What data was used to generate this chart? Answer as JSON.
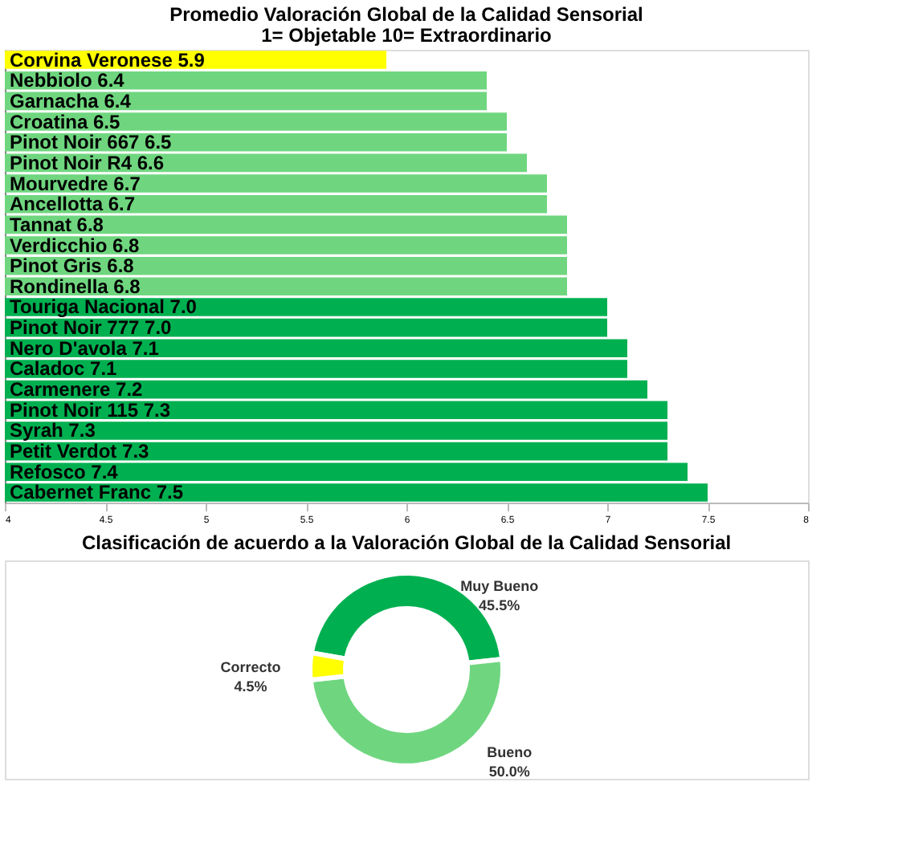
{
  "chart_data": [
    {
      "type": "bar",
      "orientation": "horizontal",
      "title": "Promedio Valoración Global de la Calidad Sensorial",
      "subtitle": "1= Objetable 10= Extraordinario",
      "categories": [
        "Corvina Veronese",
        "Nebbiolo",
        "Garnacha",
        "Croatina",
        "Pinot Noir 667",
        "Pinot Noir R4",
        "Mourvedre",
        "Ancellotta",
        "Tannat",
        "Verdicchio",
        "Pinot Gris",
        "Rondinella",
        "Touriga Nacional",
        "Pinot Noir 777",
        "Nero D'avola",
        "Caladoc",
        "Carmenere",
        "Pinot Noir 115",
        "Syrah",
        "Petit Verdot",
        "Refosco",
        "Cabernet Franc"
      ],
      "values": [
        5.9,
        6.4,
        6.4,
        6.5,
        6.5,
        6.6,
        6.7,
        6.7,
        6.8,
        6.8,
        6.8,
        6.8,
        7.0,
        7.0,
        7.1,
        7.1,
        7.2,
        7.3,
        7.3,
        7.3,
        7.4,
        7.5
      ],
      "value_labels": [
        "5.9",
        "6.4",
        "6.4",
        "6.5",
        "6.5",
        "6.6",
        "6.7",
        "6.7",
        "6.8",
        "6.8",
        "6.8",
        "6.8",
        "7.0",
        "7.0",
        "7.1",
        "7.1",
        "7.2",
        "7.3",
        "7.3",
        "7.3",
        "7.4",
        "7.5"
      ],
      "colors": [
        "#ffff00",
        "#6fd67f",
        "#6fd67f",
        "#6fd67f",
        "#6fd67f",
        "#6fd67f",
        "#6fd67f",
        "#6fd67f",
        "#6fd67f",
        "#6fd67f",
        "#6fd67f",
        "#6fd67f",
        "#00b050",
        "#00b050",
        "#00b050",
        "#00b050",
        "#00b050",
        "#00b050",
        "#00b050",
        "#00b050",
        "#00b050",
        "#00b050"
      ],
      "xlim": [
        4,
        8
      ],
      "xticks": [
        4,
        4.5,
        5,
        5.5,
        6,
        6.5,
        7,
        7.5,
        8
      ],
      "tick_labels": "x",
      "grid": false
    },
    {
      "type": "donut",
      "title": "Clasificación de acuerdo a la Valoración Global de la Calidad Sensorial",
      "categories": [
        "Muy Bueno",
        "Bueno",
        "Correcto"
      ],
      "values": [
        45.5,
        50.0,
        4.5
      ],
      "value_labels": [
        "45.5%",
        "50.0%",
        "4.5%"
      ],
      "colors": [
        "#00b050",
        "#6fd67f",
        "#ffff00"
      ]
    }
  ]
}
